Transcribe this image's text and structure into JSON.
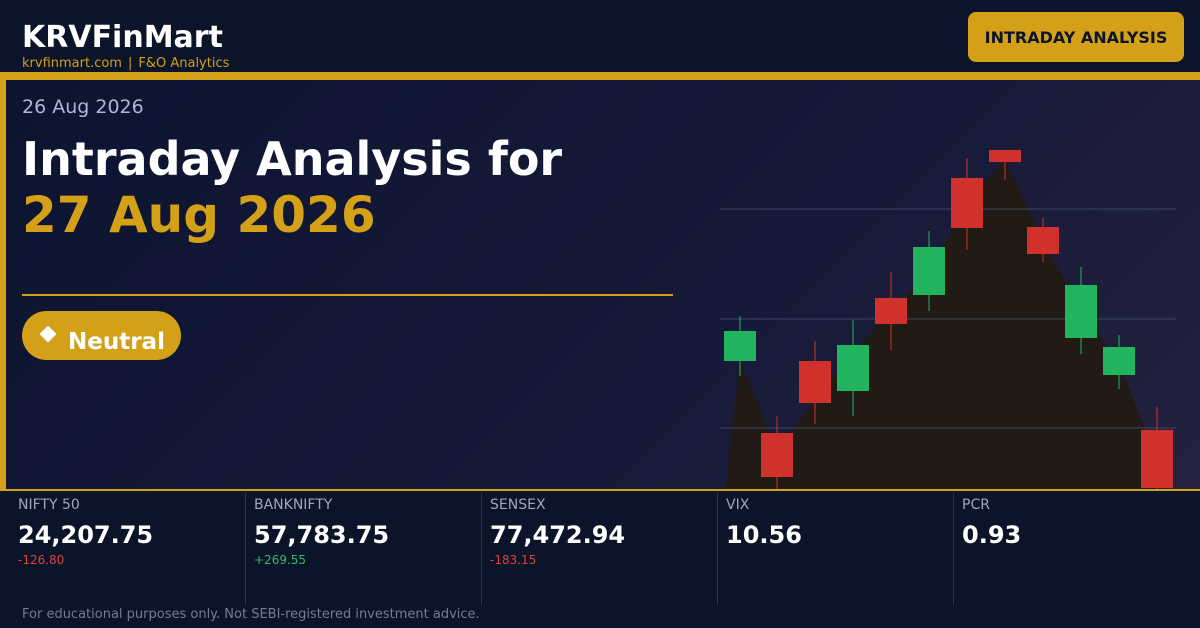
{
  "header": {
    "brand": "KRVFinMart",
    "site": "krvfinmart.com",
    "separator": "|",
    "tagline": "F&O Analytics",
    "badge": "INTRADAY ANALYSIS"
  },
  "hero": {
    "date": "26 Aug 2026",
    "title": "Intraday Analysis for",
    "target_date": "27 Aug 2026",
    "sentiment": "Neutral"
  },
  "indices": [
    {
      "name": "NIFTY 50",
      "value": "24,207.75",
      "change": "-126.80"
    },
    {
      "name": "BANKNIFTY",
      "value": "57,783.75",
      "change": "+269.55"
    },
    {
      "name": "SENSEX",
      "value": "77,472.94",
      "change": "-183.15"
    },
    {
      "name": "VIX",
      "value": "10.56"
    },
    {
      "name": "PCR",
      "value": "0.93"
    }
  ],
  "footer": {
    "disclaimer": "For educational purposes only. Not SEBI-registered investment advice."
  }
}
